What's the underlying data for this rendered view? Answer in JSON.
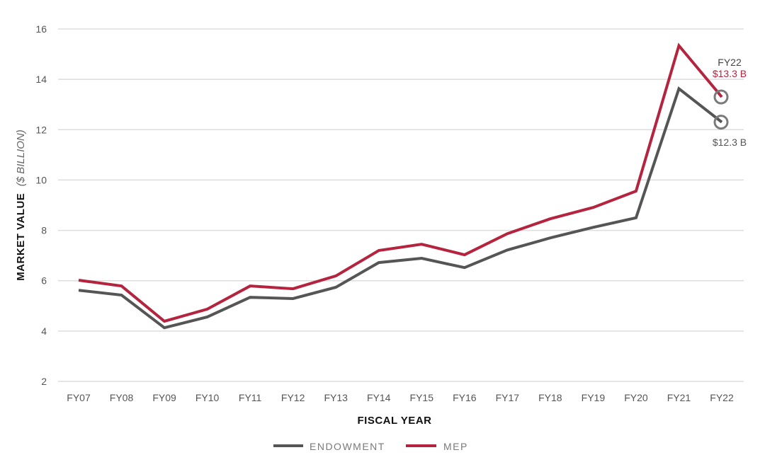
{
  "chart_data": {
    "type": "line",
    "title": "",
    "xlabel": "FISCAL YEAR",
    "ylabel": "MARKET VALUE",
    "ylabel_unit": "($ BILLION)",
    "categories": [
      "FY07",
      "FY08",
      "FY09",
      "FY10",
      "FY11",
      "FY12",
      "FY13",
      "FY14",
      "FY15",
      "FY16",
      "FY17",
      "FY18",
      "FY19",
      "FY20",
      "FY21",
      "FY22"
    ],
    "yticks": [
      2,
      4,
      6,
      8,
      10,
      12,
      14,
      16
    ],
    "ylim": [
      2,
      16
    ],
    "grid": true,
    "legend_position": "bottom-center",
    "series": [
      {
        "name": "ENDOWMENT",
        "color": "#555555",
        "values": [
          5.62,
          5.43,
          4.13,
          4.56,
          5.34,
          5.29,
          5.74,
          6.72,
          6.89,
          6.52,
          7.22,
          7.7,
          8.12,
          8.5,
          13.63,
          12.3
        ]
      },
      {
        "name": "MEP",
        "color": "#b5243f",
        "values": [
          6.02,
          5.79,
          4.39,
          4.87,
          5.79,
          5.68,
          6.19,
          7.2,
          7.45,
          7.03,
          7.87,
          8.46,
          8.91,
          9.56,
          15.34,
          13.3
        ]
      }
    ],
    "annotations": {
      "year_label": "FY22",
      "mep_label": "$13.3 B",
      "endowment_label": "$12.3 B"
    }
  }
}
